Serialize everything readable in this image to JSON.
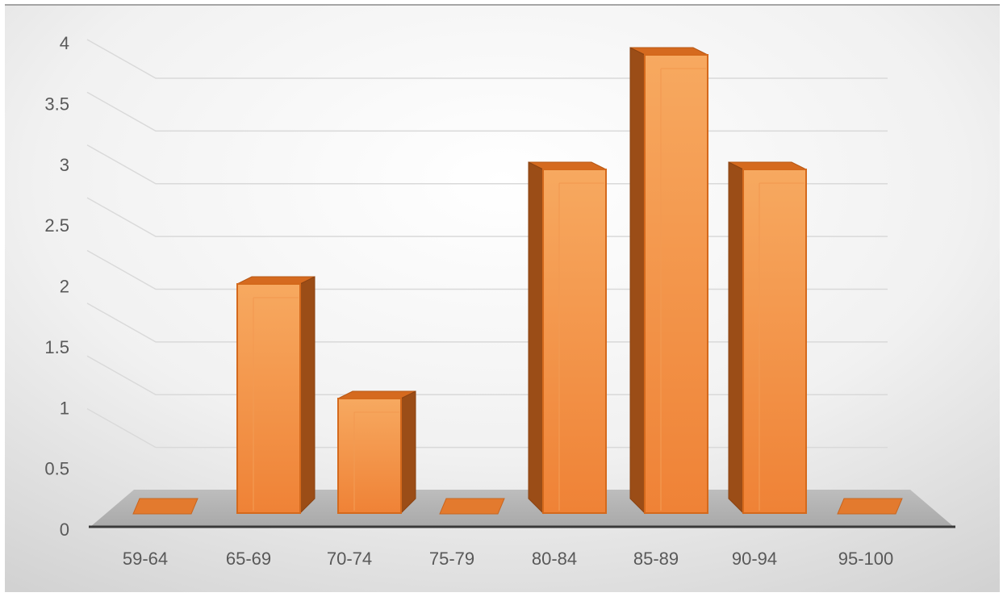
{
  "chart_data": {
    "type": "bar",
    "categories": [
      "59-64",
      "65-69",
      "70-74",
      "75-79",
      "80-84",
      "85-89",
      "90-94",
      "95-100"
    ],
    "values": [
      0,
      2,
      1,
      0,
      3,
      4,
      3,
      0
    ],
    "yticks": [
      "0",
      "0.5",
      "1",
      "1.5",
      "2",
      "2.5",
      "3",
      "3.5",
      "4"
    ],
    "ylim": [
      0,
      4
    ],
    "grid": true,
    "bar_color": "#f0883a",
    "title": "",
    "xlabel": "",
    "ylabel": ""
  }
}
